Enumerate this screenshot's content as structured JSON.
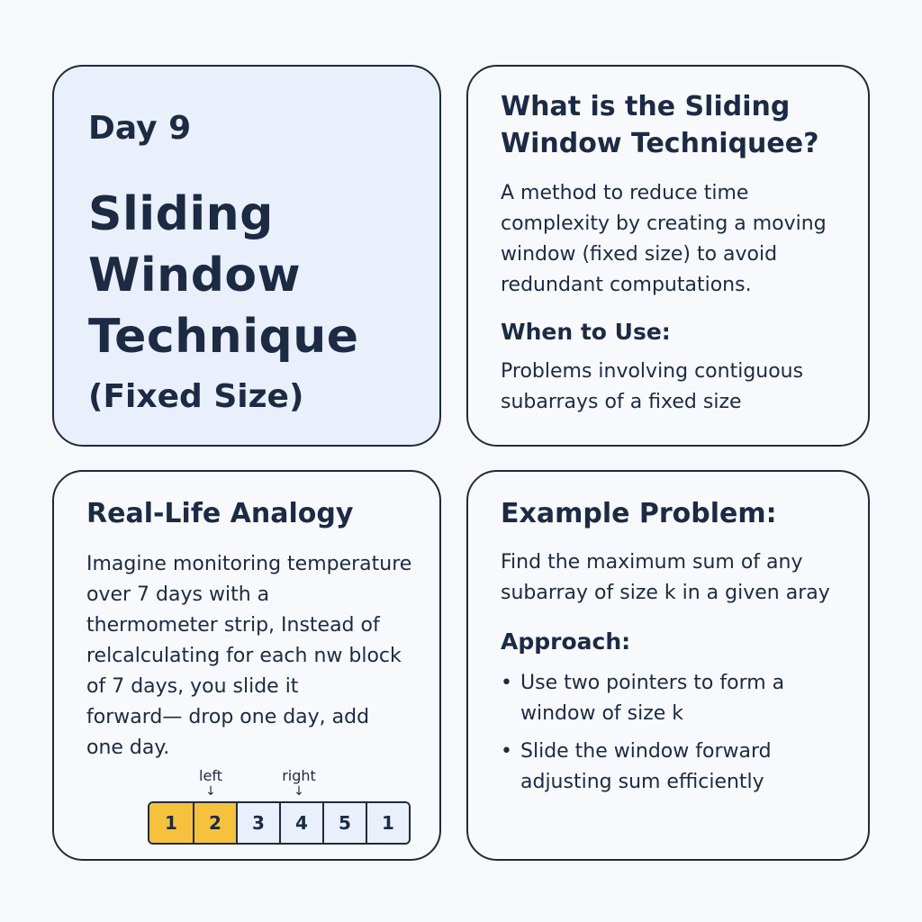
{
  "title_card": {
    "day": "Day 9",
    "title_lines": [
      "Sliding",
      "Window",
      "Technique"
    ],
    "subtitle": "(Fixed Size)"
  },
  "what_card": {
    "heading_lines": [
      "What is the Sliding",
      "Window Techniquee?"
    ],
    "description_lines": [
      "A method to reduce time",
      "complexity by creating a moving",
      "window (fixed size) to avoid",
      "redundant computations."
    ],
    "when_heading": "When to Use:",
    "when_lines": [
      "Problems involving contiguous",
      "subarrays of a fixed size"
    ]
  },
  "analogy_card": {
    "heading": "Real-Life Analogy",
    "body_lines": [
      "Imagine monitoring temperature",
      "over 7 days with a",
      "thermometer strip, Instead of",
      "relcalculating for each nw block",
      "of 7 days, you slide it",
      "forward— drop one day, add",
      "one day."
    ],
    "pointer_left": "left",
    "pointer_right": "right",
    "arrow": "↓",
    "strip_values": [
      "1",
      "2",
      "3",
      "4",
      "5",
      "1"
    ],
    "highlight_color": "#f6c23e"
  },
  "example_card": {
    "heading": "Example Problem:",
    "problem_lines": [
      "Find the maximum sum of any",
      "subarray of size k in a given aray"
    ],
    "approach_heading": "Approach:",
    "bullet_symbol": "•",
    "approach_items": [
      [
        "Use two pointers to form a",
        "window of size k"
      ],
      [
        "Slide the window forward",
        "adjusting sum efficiently"
      ]
    ]
  }
}
